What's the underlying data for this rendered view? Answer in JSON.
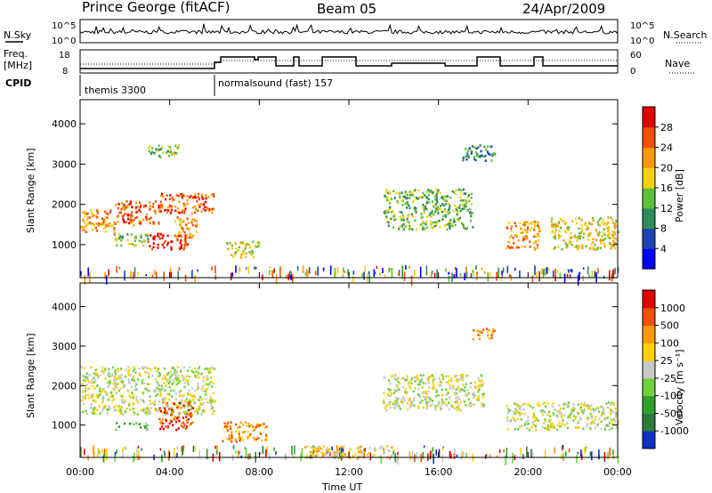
{
  "header": {
    "station": "Prince George (fitACF)",
    "beam": "Beam 05",
    "date": "24/Apr/2009"
  },
  "sky_panel": {
    "left_label": "N.Sky",
    "right_label": "N.Search",
    "left_ticks": [
      "10^5",
      "10^0"
    ],
    "right_ticks": [
      "10^5",
      "10^0"
    ]
  },
  "freq_panel": {
    "left_label_1": "Freq.",
    "left_label_2": "[MHz]",
    "right_label": "Nave",
    "left_ticks": [
      "18",
      "8"
    ],
    "right_ticks": [
      "60",
      "0"
    ]
  },
  "cpid": {
    "label": "CPID",
    "programs": [
      {
        "name": "themis 3300",
        "start_hour": 0
      },
      {
        "name": "normalsound (fast) 157",
        "start_hour": 6
      }
    ]
  },
  "chart_data": [
    {
      "type": "heatmap",
      "panel": "power",
      "ylabel": "Slant Range [km]",
      "ylim": [
        180,
        4600
      ],
      "yticks": [
        "1000",
        "2000",
        "3000",
        "4000"
      ],
      "xlim_hours": [
        0,
        24
      ],
      "colorbar_label": "Power [dB]",
      "colorbar_ticks": [
        "4",
        "8",
        "12",
        "16",
        "20",
        "24",
        "28"
      ],
      "colorbar_colors": [
        "#0000ff",
        "#1a43b4",
        "#2f8b5a",
        "#5fbf3a",
        "#f0d010",
        "#ff9a00",
        "#f05000",
        "#e00000"
      ],
      "bands": [
        {
          "t": [
            0.0,
            1.5
          ],
          "r": [
            1300,
            1900
          ],
          "level": 5
        },
        {
          "t": [
            1.5,
            3.5
          ],
          "r": [
            1500,
            2100
          ],
          "level": 6
        },
        {
          "t": [
            3.5,
            6.0
          ],
          "r": [
            1800,
            2300
          ],
          "level": 6
        },
        {
          "t": [
            3.0,
            4.8
          ],
          "r": [
            900,
            1300
          ],
          "level": 7
        },
        {
          "t": [
            4.2,
            5.3
          ],
          "r": [
            1200,
            1700
          ],
          "level": 5
        },
        {
          "t": [
            1.5,
            3.0
          ],
          "r": [
            1000,
            1300
          ],
          "level": 3
        },
        {
          "t": [
            3.0,
            4.5
          ],
          "r": [
            3200,
            3500
          ],
          "level": 3
        },
        {
          "t": [
            6.5,
            8.0
          ],
          "r": [
            700,
            1100
          ],
          "level": 4
        },
        {
          "t": [
            13.5,
            17.5
          ],
          "r": [
            1400,
            2400
          ],
          "level": 3
        },
        {
          "t": [
            17.0,
            18.5
          ],
          "r": [
            3100,
            3500
          ],
          "level": 2
        },
        {
          "t": [
            19.0,
            20.5
          ],
          "r": [
            900,
            1600
          ],
          "level": 5
        },
        {
          "t": [
            21.0,
            24.0
          ],
          "r": [
            900,
            1700
          ],
          "level": 4
        }
      ]
    },
    {
      "type": "heatmap",
      "panel": "velocity",
      "ylabel": "Slant Range [km]",
      "ylim": [
        180,
        4600
      ],
      "yticks": [
        "1000",
        "2000",
        "3000",
        "4000"
      ],
      "xlim_hours": [
        0,
        24
      ],
      "xlabel": "Time UT",
      "xticks": [
        "00:00",
        "04:00",
        "08:00",
        "12:00",
        "16:00",
        "20:00",
        "00:00"
      ],
      "colorbar_label": "Velocity [m s⁻¹]",
      "colorbar_ticks": [
        "1000",
        "500",
        "100",
        "25",
        "-25",
        "-100",
        "-500",
        "-1000"
      ],
      "colorbar_colors": [
        "#1030c0",
        "#2c7a3c",
        "#2fa030",
        "#70d040",
        "#c8c8c8",
        "#ffd000",
        "#ff9a00",
        "#f05000",
        "#e00000"
      ],
      "bands": [
        {
          "t": [
            0.0,
            6.0
          ],
          "r": [
            1300,
            2500
          ],
          "level": 4
        },
        {
          "t": [
            3.5,
            5.0
          ],
          "r": [
            900,
            1600
          ],
          "level": 7
        },
        {
          "t": [
            1.5,
            3.0
          ],
          "r": [
            900,
            1100
          ],
          "level": 3
        },
        {
          "t": [
            6.3,
            8.3
          ],
          "r": [
            600,
            1100
          ],
          "level": 6
        },
        {
          "t": [
            13.5,
            18.0
          ],
          "r": [
            1400,
            2300
          ],
          "level": 4
        },
        {
          "t": [
            17.5,
            18.5
          ],
          "r": [
            3200,
            3500
          ],
          "level": 6
        },
        {
          "t": [
            19.0,
            24.0
          ],
          "r": [
            900,
            1600
          ],
          "level": 4
        },
        {
          "t": [
            10.0,
            14.0
          ],
          "r": [
            180,
            500
          ],
          "level": 5
        }
      ]
    }
  ]
}
